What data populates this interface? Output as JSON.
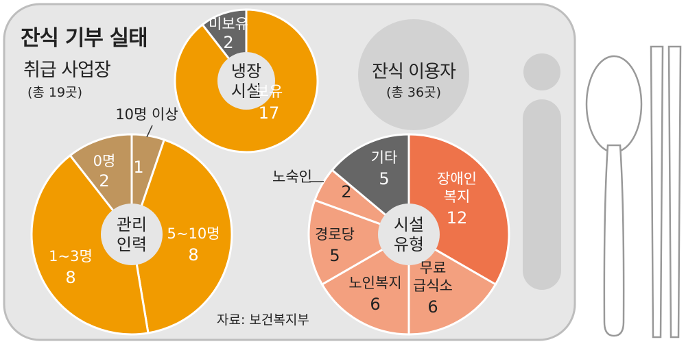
{
  "title": "잔식 기부 실태",
  "subtitle": "취급 사업장",
  "subtitle_note": "(총 19곳)",
  "users_title": "잔식 이용자",
  "users_note": "(총 36곳)",
  "source": "자료: 보건복지부",
  "colors": {
    "tray": "#e7e7e7",
    "orange": "#f19b00",
    "tan": "#bf955d",
    "darkgray": "#666666",
    "salmon_dark": "#ee734a",
    "salmon_light": "#f3a07f",
    "center": "#e6e6e6",
    "white": "#ffffff"
  },
  "chart_data": [
    {
      "type": "pie",
      "center_label": [
        "냉장",
        "시설"
      ],
      "slices": [
        {
          "label": "보유",
          "value": 17,
          "color": "#f19b00"
        },
        {
          "label": "미보유",
          "value": 2,
          "color": "#666666"
        }
      ]
    },
    {
      "type": "pie",
      "center_label": [
        "관리",
        "인력"
      ],
      "slices": [
        {
          "label": "10명 이상",
          "value": 1,
          "color": "#bf955d"
        },
        {
          "label": "5~10명",
          "value": 8,
          "color": "#f19b00"
        },
        {
          "label": "1~3명",
          "value": 8,
          "color": "#f19b00"
        },
        {
          "label": "0명",
          "value": 2,
          "color": "#bf955d"
        }
      ]
    },
    {
      "type": "pie",
      "center_label": [
        "시설",
        "유형"
      ],
      "slices": [
        {
          "label": "장애인 복지",
          "value": 12,
          "color": "#ee734a"
        },
        {
          "label": "무료 급식소",
          "value": 6,
          "color": "#f3a07f"
        },
        {
          "label": "노인복지",
          "value": 6,
          "color": "#f3a07f"
        },
        {
          "label": "경로당",
          "value": 5,
          "color": "#f3a07f"
        },
        {
          "label": "노숙인",
          "value": 2,
          "color": "#f3a07f"
        },
        {
          "label": "기타",
          "value": 5,
          "color": "#666666"
        }
      ]
    }
  ]
}
